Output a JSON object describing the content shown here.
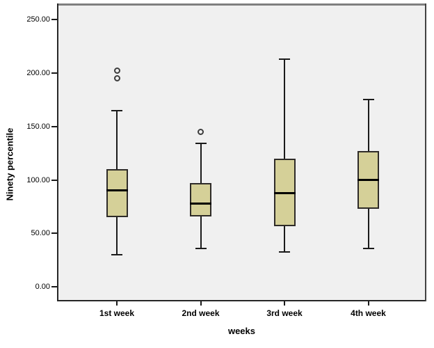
{
  "chart_data": {
    "type": "boxplot",
    "title": "",
    "xlabel": "weeks",
    "ylabel": "Ninety percentile",
    "ylim": [
      0,
      250
    ],
    "grid": false,
    "legend": null,
    "y_ticks": [
      {
        "value": 0,
        "label": "0.00"
      },
      {
        "value": 50,
        "label": "50.00"
      },
      {
        "value": 100,
        "label": "100.00"
      },
      {
        "value": 150,
        "label": "150.00"
      },
      {
        "value": 200,
        "label": "200.00"
      },
      {
        "value": 250,
        "label": "250.00"
      }
    ],
    "categories": [
      "1st week",
      "2nd week",
      "3rd week",
      "4th week"
    ],
    "series": [
      {
        "category": "1st week",
        "whisker_low": 30,
        "q1": 65,
        "median": 90,
        "q3": 110,
        "whisker_high": 165,
        "outliers": [
          195,
          202
        ]
      },
      {
        "category": "2nd week",
        "whisker_low": 36,
        "q1": 66,
        "median": 78,
        "q3": 97,
        "whisker_high": 134,
        "outliers": [
          145
        ]
      },
      {
        "category": "3rd week",
        "whisker_low": 33,
        "q1": 57,
        "median": 88,
        "q3": 120,
        "whisker_high": 213,
        "outliers": []
      },
      {
        "category": "4th week",
        "whisker_low": 36,
        "q1": 73,
        "median": 100,
        "q3": 127,
        "whisker_high": 175,
        "outliers": []
      }
    ],
    "colors": {
      "box_fill": "#D5D098",
      "box_border": "#2E2B28",
      "median": "#000000",
      "whisker": "#1A1A1A",
      "plot_background": "#F0F0F0",
      "page_background": "#FFFFFF",
      "frame_top": "#7F7F7F"
    }
  }
}
